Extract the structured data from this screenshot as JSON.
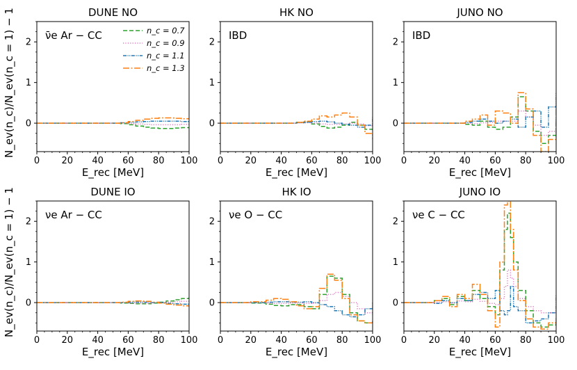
{
  "ylabel": "N_ev(n_c)/N_ev(n_c = 1) − 1",
  "legend": {
    "placement": "top-right of first panel",
    "entries": [
      "n_c = 0.7",
      "n_c = 0.9",
      "n_c = 1.1",
      "n_c = 1.3"
    ]
  },
  "colors": {
    "nc07": "#2ca02c",
    "nc09": "#e377c2",
    "nc11": "#1f77b4",
    "nc13": "#ff7f0e"
  },
  "chart_data": [
    {
      "type": "line",
      "title": "DUNE NO",
      "channel": "ν̄e Ar − CC",
      "xlabel": "E_rec [MeV]",
      "xlim": [
        0,
        100
      ],
      "ylim": [
        -0.7,
        2.5
      ],
      "x": [
        0,
        10,
        20,
        30,
        40,
        50,
        55,
        60,
        65,
        70,
        75,
        80,
        85,
        90,
        95,
        100
      ],
      "series": [
        {
          "name": "n_c = 0.7",
          "values": [
            0,
            0,
            0,
            0,
            0,
            0,
            -0.01,
            -0.04,
            -0.07,
            -0.1,
            -0.12,
            -0.13,
            -0.13,
            -0.12,
            -0.11,
            -0.1
          ]
        },
        {
          "name": "n_c = 0.9",
          "values": [
            0,
            0,
            0,
            0,
            0,
            0,
            0,
            -0.01,
            -0.02,
            -0.03,
            -0.04,
            -0.04,
            -0.04,
            -0.04,
            -0.03,
            -0.03
          ]
        },
        {
          "name": "n_c = 1.1",
          "values": [
            0,
            0,
            0,
            0,
            0,
            0,
            0.01,
            0.02,
            0.03,
            0.04,
            0.05,
            0.05,
            0.05,
            0.05,
            0.04,
            0.04
          ]
        },
        {
          "name": "n_c = 1.3",
          "values": [
            0,
            0,
            0,
            0,
            0,
            0,
            0.01,
            0.04,
            0.07,
            0.1,
            0.12,
            0.13,
            0.13,
            0.12,
            0.11,
            0.1
          ]
        }
      ]
    },
    {
      "type": "line",
      "title": "HK NO",
      "channel": "IBD",
      "xlabel": "E_rec [MeV]",
      "xlim": [
        0,
        100
      ],
      "ylim": [
        -0.7,
        2.5
      ],
      "x": [
        0,
        10,
        20,
        30,
        40,
        50,
        55,
        60,
        65,
        70,
        75,
        80,
        85,
        90,
        95,
        100
      ],
      "series": [
        {
          "name": "n_c = 0.7",
          "values": [
            0,
            0,
            0,
            0,
            0,
            0.02,
            0.03,
            -0.02,
            -0.08,
            -0.12,
            -0.1,
            -0.05,
            0.02,
            -0.05,
            -0.15,
            -0.22
          ]
        },
        {
          "name": "n_c = 0.9",
          "values": [
            0,
            0,
            0,
            0,
            0,
            0.01,
            0.01,
            0,
            -0.02,
            -0.03,
            -0.03,
            -0.02,
            0,
            -0.02,
            -0.06,
            -0.1
          ]
        },
        {
          "name": "n_c = 1.1",
          "values": [
            0,
            0,
            0,
            0,
            0,
            0.01,
            0.02,
            0.04,
            0.05,
            0.03,
            0,
            -0.03,
            -0.05,
            -0.1,
            -0.05,
            0.15
          ]
        },
        {
          "name": "n_c = 1.3",
          "values": [
            0,
            0,
            0,
            0,
            0,
            0.02,
            0.05,
            0.1,
            0.18,
            0.15,
            0.2,
            0.25,
            0.15,
            -0.05,
            -0.25,
            -0.4
          ]
        }
      ]
    },
    {
      "type": "line",
      "title": "JUNO NO",
      "channel": "IBD",
      "xlabel": "E_rec [MeV]",
      "xlim": [
        0,
        100
      ],
      "ylim": [
        -0.7,
        2.5
      ],
      "x": [
        0,
        10,
        20,
        30,
        40,
        45,
        50,
        55,
        60,
        65,
        70,
        75,
        80,
        85,
        90,
        95,
        100
      ],
      "series": [
        {
          "name": "n_c = 0.7",
          "values": [
            0,
            0,
            0,
            0,
            -0.03,
            -0.05,
            0.05,
            -0.1,
            -0.15,
            -0.1,
            0.15,
            0.65,
            0.3,
            -0.2,
            -0.5,
            -0.3,
            0.1
          ]
        },
        {
          "name": "n_c = 0.9",
          "values": [
            0,
            0,
            0,
            0,
            0,
            -0.01,
            0.01,
            0.02,
            0.05,
            0.05,
            0.05,
            0.3,
            0.15,
            -0.05,
            -0.3,
            -0.2,
            0.05
          ]
        },
        {
          "name": "n_c = 1.1",
          "values": [
            0,
            0,
            0,
            0,
            0.02,
            0.05,
            0.1,
            0.05,
            0,
            0.05,
            0.1,
            -0.1,
            0.15,
            0.3,
            -0.1,
            0.4,
            0.75
          ]
        },
        {
          "name": "n_c = 1.3",
          "values": [
            0,
            0,
            0,
            0,
            0.05,
            0.1,
            0.2,
            -0.05,
            0.3,
            0.25,
            0,
            0.75,
            0.35,
            -0.3,
            -0.7,
            -0.4,
            0.35
          ]
        }
      ]
    },
    {
      "type": "line",
      "title": "DUNE IO",
      "channel": "νe Ar − CC",
      "xlabel": "E_rec [MeV]",
      "xlim": [
        0,
        100
      ],
      "ylim": [
        -0.7,
        2.5
      ],
      "x": [
        0,
        10,
        20,
        30,
        40,
        50,
        55,
        60,
        65,
        70,
        75,
        80,
        85,
        90,
        95,
        100
      ],
      "series": [
        {
          "name": "n_c = 0.7",
          "values": [
            0,
            0,
            0,
            0,
            0,
            0,
            -0.01,
            -0.02,
            -0.03,
            -0.03,
            -0.01,
            0.01,
            0.04,
            0.07,
            0.1,
            0.13
          ]
        },
        {
          "name": "n_c = 0.9",
          "values": [
            0,
            0,
            0,
            0,
            0,
            0,
            0,
            -0.01,
            -0.01,
            -0.01,
            0,
            0,
            0.01,
            0.02,
            0.03,
            0.04
          ]
        },
        {
          "name": "n_c = 1.1",
          "values": [
            0,
            0,
            0,
            0,
            0,
            0,
            0,
            0.01,
            0.01,
            0.01,
            0,
            0,
            -0.02,
            -0.03,
            -0.04,
            -0.04
          ]
        },
        {
          "name": "n_c = 1.3",
          "values": [
            0,
            0,
            0,
            0,
            0,
            0,
            0.01,
            0.03,
            0.04,
            0.03,
            0.01,
            -0.01,
            -0.04,
            -0.06,
            -0.08,
            -0.1
          ]
        }
      ]
    },
    {
      "type": "line",
      "title": "HK IO",
      "channel": "νe O − CC",
      "xlabel": "E_rec [MeV]",
      "xlim": [
        0,
        100
      ],
      "ylim": [
        -0.7,
        2.5
      ],
      "x": [
        0,
        10,
        20,
        30,
        35,
        40,
        45,
        50,
        55,
        60,
        65,
        70,
        75,
        80,
        85,
        90,
        95,
        100
      ],
      "series": [
        {
          "name": "n_c = 0.7",
          "values": [
            0,
            0,
            -0.01,
            -0.04,
            -0.07,
            -0.08,
            -0.05,
            -0.05,
            -0.1,
            -0.15,
            0.2,
            0.65,
            0.6,
            0.2,
            -0.25,
            -0.45,
            -0.5,
            -0.45
          ]
        },
        {
          "name": "n_c = 0.9",
          "values": [
            0,
            0,
            0,
            -0.01,
            -0.02,
            -0.02,
            -0.01,
            -0.01,
            -0.02,
            -0.01,
            0.05,
            0.2,
            0.25,
            0.15,
            0,
            -0.15,
            -0.25,
            -0.3
          ]
        },
        {
          "name": "n_c = 1.1",
          "values": [
            0,
            0,
            0,
            0.01,
            0.02,
            0.02,
            0.01,
            0.01,
            0.02,
            0,
            -0.05,
            -0.1,
            -0.2,
            -0.3,
            -0.35,
            -0.3,
            -0.15,
            0
          ]
        },
        {
          "name": "n_c = 1.3",
          "values": [
            0,
            0,
            0.02,
            0.06,
            0.1,
            0.08,
            0.02,
            -0.08,
            -0.15,
            -0.1,
            0.35,
            0.7,
            0.55,
            0.1,
            -0.3,
            -0.45,
            -0.5,
            -0.45
          ]
        }
      ]
    },
    {
      "type": "line",
      "title": "JUNO IO",
      "channel": "νe C − CC",
      "xlabel": "E_rec [MeV]",
      "xlim": [
        0,
        100
      ],
      "ylim": [
        -0.7,
        2.5
      ],
      "x": [
        0,
        10,
        20,
        25,
        30,
        35,
        40,
        45,
        50,
        55,
        60,
        63,
        66,
        68,
        70,
        72,
        75,
        80,
        85,
        90,
        95,
        100
      ],
      "series": [
        {
          "name": "n_c = 0.7",
          "values": [
            0,
            0,
            0.05,
            0.1,
            -0.05,
            0.15,
            0.05,
            0.3,
            0.1,
            -0.1,
            -0.3,
            0.8,
            1.8,
            2.2,
            1.6,
            1.0,
            0.3,
            -0.2,
            -0.5,
            -0.6,
            -0.55,
            -0.45
          ]
        },
        {
          "name": "n_c = 0.9",
          "values": [
            0,
            0,
            0.01,
            0.02,
            -0.01,
            0.04,
            0.02,
            0.08,
            0.03,
            -0.02,
            -0.05,
            0.1,
            0.4,
            0.8,
            0.6,
            0.4,
            0.1,
            -0.1,
            -0.2,
            -0.25,
            -0.25,
            -0.2
          ]
        },
        {
          "name": "n_c = 1.1",
          "values": [
            0,
            0,
            -0.02,
            0.05,
            0,
            0.1,
            0.05,
            0.2,
            0.25,
            0.1,
            0.3,
            -0.2,
            -0.3,
            -0.2,
            0.4,
            -0.1,
            -0.2,
            -0.5,
            -0.45,
            -0.4,
            -0.25,
            0.2
          ]
        },
        {
          "name": "n_c = 1.3",
          "values": [
            0,
            0,
            0.05,
            0.15,
            -0.1,
            0.2,
            0.1,
            0.45,
            0.2,
            -0.2,
            -0.6,
            1.0,
            2.4,
            2.5,
            1.8,
            0.8,
            0.05,
            -0.4,
            -0.6,
            -0.65,
            -0.5,
            -0.35
          ]
        }
      ]
    }
  ]
}
